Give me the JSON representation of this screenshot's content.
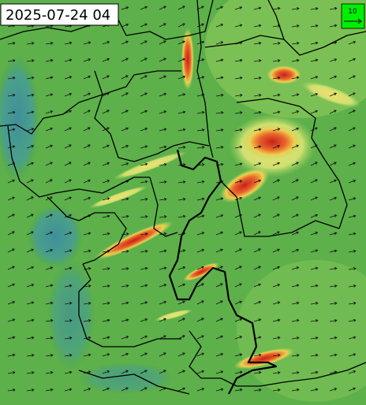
{
  "timestamp": "2025-07-24 04",
  "legend": {
    "label": "10"
  }
}
